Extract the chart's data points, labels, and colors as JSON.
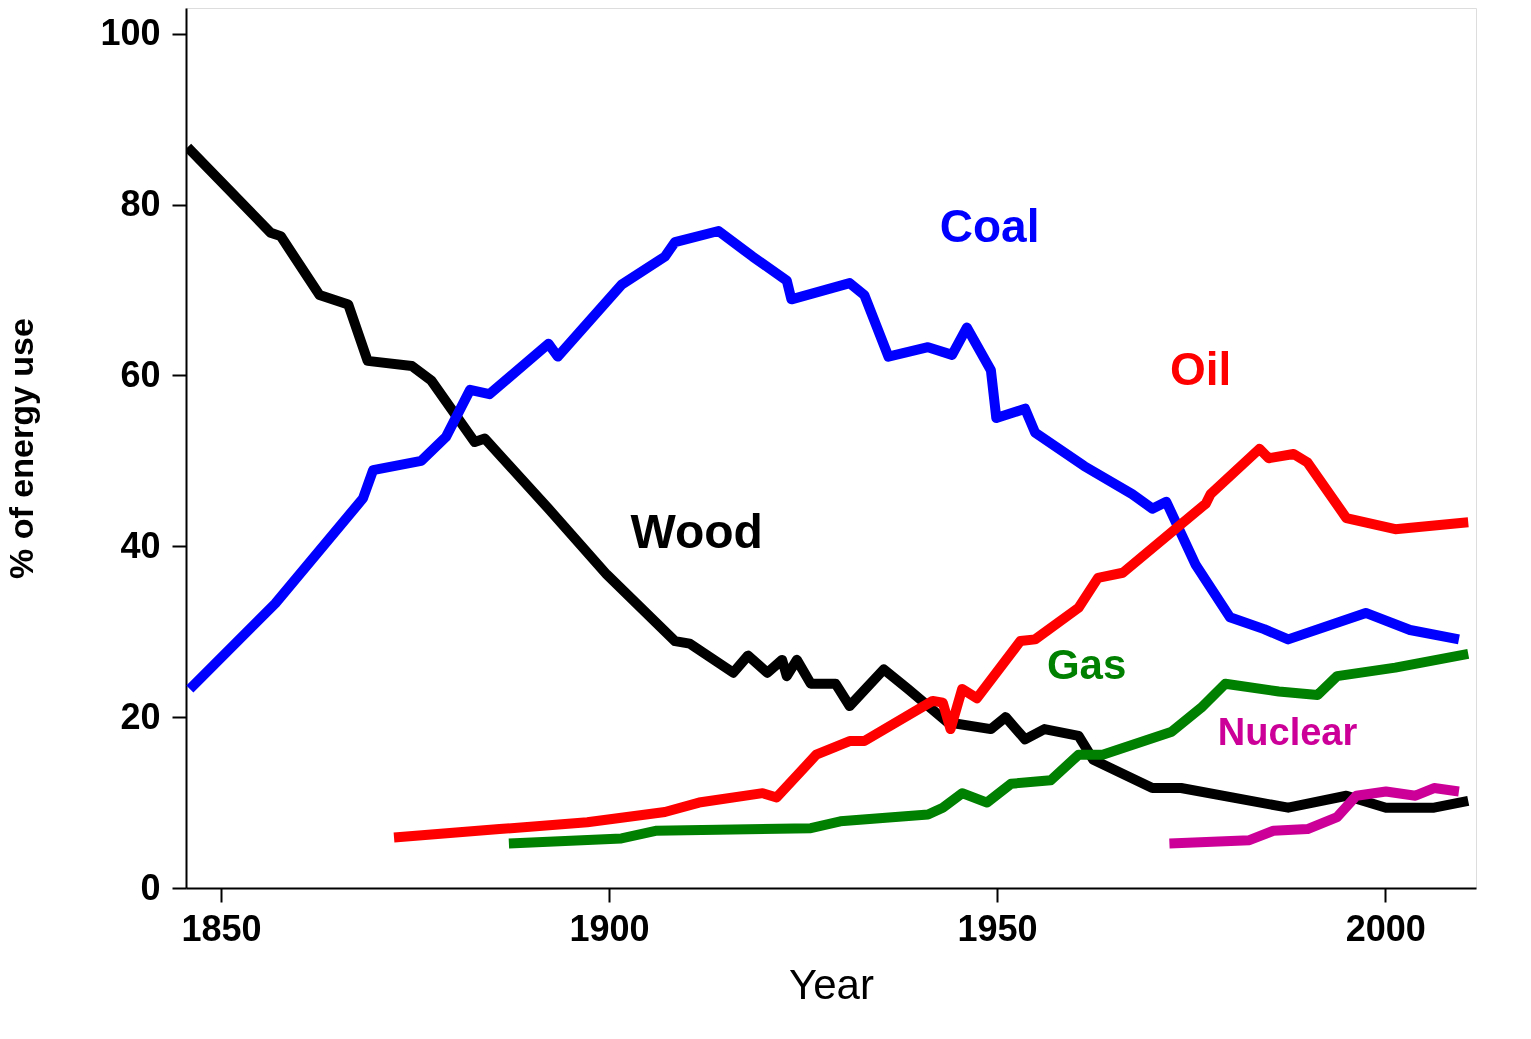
{
  "chart_data": {
    "type": "line",
    "xlabel": "Year",
    "ylabel": "% of energy use",
    "xlim": [
      1845.5,
      2011.7
    ],
    "xticks": [
      1850,
      1900,
      1950,
      2000
    ],
    "ylim": [
      0,
      103
    ],
    "yticks": [
      0,
      20,
      40,
      60,
      80,
      100
    ],
    "grid": false,
    "legend": false,
    "marker": "none",
    "line_style": "solid",
    "series": [
      {
        "name": "Wood",
        "color": "#000000",
        "x": [
          1845.7,
          1856.4,
          1857.7,
          1862.7,
          1866.4,
          1868.9,
          1874.6,
          1877.1,
          1882.7,
          1884,
          1892.2,
          1899.7,
          1908.5,
          1910.4,
          1916,
          1917.9,
          1920.4,
          1922.3,
          1922.9,
          1924.2,
          1926,
          1929.2,
          1931,
          1935.4,
          1938.5,
          1943.6,
          1949.2,
          1951.1,
          1953.6,
          1956.1,
          1960.5,
          1962.4,
          1970,
          1973.7,
          1987.5,
          1995,
          2000.1,
          2006.3,
          2010.7
        ],
        "values": [
          86.7,
          76.7,
          76.3,
          69.4,
          68.3,
          61.7,
          61.1,
          59.4,
          52.2,
          52.6,
          44.4,
          36.7,
          28.9,
          28.6,
          25.2,
          27.2,
          25.2,
          26.7,
          24.8,
          26.7,
          23.9,
          23.9,
          21.3,
          25.6,
          23.3,
          19.4,
          18.6,
          20,
          17.4,
          18.6,
          17.8,
          15,
          11.7,
          11.7,
          9.4,
          10.8,
          9.4,
          9.4,
          10.2
        ]
      },
      {
        "name": "Coal",
        "color": "#0000ff",
        "x": [
          1846,
          1857,
          1868.3,
          1869.6,
          1875.8,
          1879,
          1882.1,
          1884.6,
          1892.2,
          1893.4,
          1901.6,
          1907.2,
          1908.5,
          1914.1,
          1918.5,
          1922.9,
          1923.5,
          1931,
          1932.9,
          1936,
          1941.1,
          1944.2,
          1946.1,
          1949.2,
          1949.9,
          1953.6,
          1954.9,
          1961.2,
          1967.4,
          1970,
          1971.8,
          1975.6,
          1980,
          1984.4,
          1987.5,
          1997.5,
          2003.2,
          2009.5
        ],
        "values": [
          23.3,
          33.3,
          45.6,
          48.9,
          50,
          52.8,
          58.3,
          57.8,
          63.7,
          62.2,
          70.6,
          73.9,
          75.6,
          76.9,
          73.9,
          71.1,
          68.9,
          70.8,
          69.4,
          62.2,
          63.3,
          62.4,
          65.6,
          60.6,
          55,
          56.1,
          53.3,
          49.4,
          46.1,
          44.4,
          45.2,
          37.8,
          31.7,
          30.3,
          29.1,
          32.2,
          30.2,
          29.1
        ]
      },
      {
        "name": "Oil",
        "color": "#ff0000",
        "x": [
          1872.3,
          1885.9,
          1897.2,
          1907.2,
          1911.6,
          1919.8,
          1921.6,
          1926.7,
          1931,
          1932.9,
          1941.7,
          1943,
          1944,
          1945.5,
          1947.4,
          1953,
          1954.9,
          1960.5,
          1963,
          1966.2,
          1976.9,
          1977.5,
          1983.8,
          1985,
          1988.2,
          1990,
          1995,
          2001.3,
          2010.7
        ],
        "values": [
          5.9,
          6.9,
          7.7,
          8.9,
          10,
          11.1,
          10.6,
          15.6,
          17.2,
          17.2,
          21.9,
          21.7,
          18.6,
          23.3,
          22.2,
          28.9,
          29.1,
          32.8,
          36.3,
          36.9,
          45,
          46.1,
          51.4,
          50.3,
          50.8,
          49.8,
          43.3,
          42,
          42.8
        ]
      },
      {
        "name": "Gas",
        "color": "#008000",
        "x": [
          1887.1,
          1901.6,
          1906,
          1926,
          1929.8,
          1941.1,
          1943,
          1945.5,
          1948.7,
          1951.8,
          1956.9,
          1960.5,
          1963.6,
          1972.5,
          1976.3,
          1979.4,
          1986.3,
          1991.3,
          1993.8,
          2001.3,
          2010.7
        ],
        "values": [
          5.2,
          5.8,
          6.7,
          7,
          7.8,
          8.6,
          9.4,
          11.1,
          10,
          12.2,
          12.6,
          15.6,
          15.6,
          18.3,
          21.1,
          23.9,
          23,
          22.6,
          24.8,
          25.8,
          27.4
        ]
      },
      {
        "name": "Nuclear",
        "color": "#cc0099",
        "x": [
          1972.2,
          1982.5,
          1985.6,
          1990,
          1993.8,
          1996.3,
          2000.1,
          2003.9,
          2006.3,
          2009.5
        ],
        "values": [
          5.2,
          5.6,
          6.7,
          6.9,
          8.3,
          10.8,
          11.3,
          10.8,
          11.7,
          11.3
        ]
      }
    ]
  }
}
